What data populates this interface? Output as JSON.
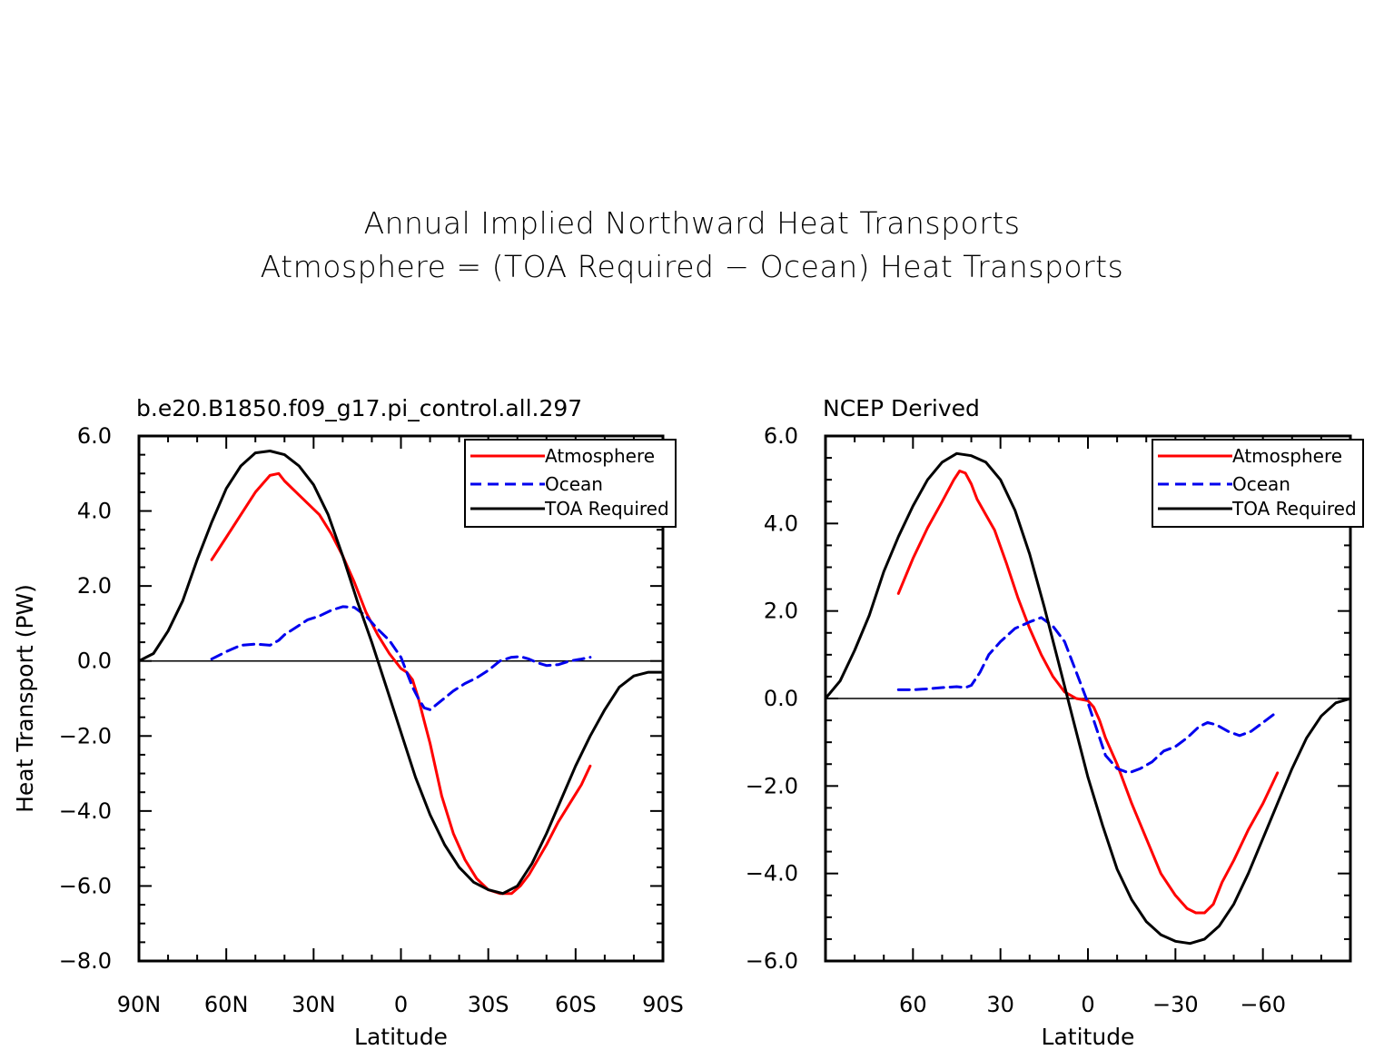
{
  "title": {
    "line1": "Annual Implied Northward Heat Transports",
    "line2": "Atmosphere = (TOA Required − Ocean) Heat Transports"
  },
  "colors": {
    "atmosphere": "#ff0000",
    "ocean": "#0000ee",
    "toa": "#000000"
  },
  "chart_data": [
    {
      "type": "line",
      "title": "b.e20.B1850.f09_g17.pi_control.all.297",
      "xlabel": "Latitude",
      "ylabel": "Heat Transport (PW)",
      "xlim": [
        90,
        -90
      ],
      "ylim": [
        -8,
        6
      ],
      "x_ticks": [
        90,
        60,
        30,
        0,
        -30,
        -60,
        -90
      ],
      "x_tick_labels": [
        "90N",
        "60N",
        "30N",
        "0",
        "30S",
        "60S",
        "90S"
      ],
      "y_ticks": [
        6,
        4,
        2,
        0,
        -2,
        -4,
        -6,
        -8
      ],
      "y_tick_labels": [
        "6.0",
        "4.0",
        "2.0",
        "0.0",
        "−2.0",
        "−4.0",
        "−6.0",
        "−8.0"
      ],
      "legend": "top-right",
      "series": [
        {
          "name": "Atmosphere",
          "style": "solid",
          "color": "#ff0000",
          "x": [
            65,
            60,
            55,
            50,
            45,
            42,
            40,
            36,
            32,
            28,
            24,
            20,
            16,
            12,
            8,
            4,
            0,
            -2,
            -4,
            -6,
            -8,
            -10,
            -14,
            -18,
            -22,
            -26,
            -30,
            -34,
            -38,
            -41,
            -44,
            -47,
            -50,
            -54,
            -58,
            -62,
            -65
          ],
          "y": [
            2.7,
            3.3,
            3.9,
            4.5,
            4.95,
            5.0,
            4.8,
            4.5,
            4.2,
            3.9,
            3.4,
            2.8,
            2.1,
            1.3,
            0.7,
            0.2,
            -0.2,
            -0.3,
            -0.5,
            -1.0,
            -1.6,
            -2.2,
            -3.6,
            -4.6,
            -5.3,
            -5.8,
            -6.1,
            -6.2,
            -6.2,
            -6.0,
            -5.7,
            -5.3,
            -4.9,
            -4.3,
            -3.8,
            -3.3,
            -2.8
          ]
        },
        {
          "name": "Ocean",
          "style": "dashed",
          "color": "#0000ee",
          "x": [
            65,
            60,
            55,
            50,
            45,
            42,
            40,
            36,
            32,
            28,
            24,
            20,
            16,
            12,
            8,
            4,
            0,
            -2,
            -4,
            -6,
            -8,
            -10,
            -14,
            -18,
            -22,
            -26,
            -30,
            -34,
            -38,
            -41,
            -44,
            -47,
            -50,
            -54,
            -58,
            -62,
            -65
          ],
          "y": [
            0.05,
            0.25,
            0.42,
            0.45,
            0.42,
            0.55,
            0.7,
            0.9,
            1.1,
            1.2,
            1.35,
            1.45,
            1.43,
            1.2,
            0.85,
            0.55,
            0.1,
            -0.3,
            -0.7,
            -1.0,
            -1.25,
            -1.3,
            -1.05,
            -0.8,
            -0.6,
            -0.45,
            -0.25,
            0.0,
            0.1,
            0.12,
            0.05,
            -0.05,
            -0.12,
            -0.1,
            0.0,
            0.05,
            0.1
          ]
        },
        {
          "name": "TOA Required",
          "style": "solid",
          "color": "#000000",
          "x": [
            90,
            85,
            80,
            75,
            70,
            65,
            60,
            55,
            50,
            45,
            40,
            35,
            30,
            25,
            20,
            15,
            10,
            5,
            0,
            -5,
            -10,
            -15,
            -20,
            -25,
            -30,
            -35,
            -40,
            -45,
            -50,
            -55,
            -60,
            -65,
            -70,
            -75,
            -80,
            -85,
            -90
          ],
          "y": [
            0.0,
            0.2,
            0.8,
            1.6,
            2.7,
            3.7,
            4.6,
            5.2,
            5.55,
            5.6,
            5.5,
            5.2,
            4.7,
            3.9,
            2.8,
            1.6,
            0.5,
            -0.7,
            -1.9,
            -3.1,
            -4.1,
            -4.9,
            -5.5,
            -5.9,
            -6.1,
            -6.2,
            -6.0,
            -5.4,
            -4.6,
            -3.7,
            -2.8,
            -2.0,
            -1.3,
            -0.7,
            -0.4,
            -0.3,
            -0.3
          ]
        }
      ]
    },
    {
      "type": "line",
      "title": "NCEP Derived",
      "xlabel": "Latitude",
      "ylabel": "",
      "xlim": [
        90,
        -90
      ],
      "ylim": [
        -6,
        6
      ],
      "x_ticks": [
        60,
        30,
        0,
        -30,
        -60
      ],
      "x_tick_labels": [
        "60",
        "30",
        "0",
        "−30",
        "−60"
      ],
      "y_ticks": [
        6,
        4,
        2,
        0,
        -2,
        -4,
        -6
      ],
      "y_tick_labels": [
        "6.0",
        "4.0",
        "2.0",
        "0.0",
        "−2.0",
        "−4.0",
        "−6.0"
      ],
      "legend": "top-right",
      "series": [
        {
          "name": "Atmosphere",
          "style": "solid",
          "color": "#ff0000",
          "x": [
            65,
            60,
            55,
            50,
            46,
            44,
            42,
            40,
            38,
            35,
            32,
            28,
            24,
            20,
            16,
            12,
            8,
            4,
            0,
            -2,
            -4,
            -6,
            -10,
            -15,
            -20,
            -25,
            -30,
            -34,
            -37,
            -40,
            -43,
            -46,
            -50,
            -55,
            -60,
            -65
          ],
          "y": [
            2.4,
            3.2,
            3.9,
            4.5,
            5.0,
            5.2,
            5.15,
            4.9,
            4.55,
            4.2,
            3.85,
            3.1,
            2.3,
            1.6,
            1.0,
            0.5,
            0.15,
            0.0,
            -0.05,
            -0.2,
            -0.5,
            -0.9,
            -1.5,
            -2.4,
            -3.2,
            -4.0,
            -4.5,
            -4.8,
            -4.9,
            -4.9,
            -4.7,
            -4.2,
            -3.7,
            -3.0,
            -2.4,
            -1.7
          ]
        },
        {
          "name": "Ocean",
          "style": "dashed",
          "color": "#0000ee",
          "x": [
            65,
            60,
            55,
            50,
            45,
            42,
            40,
            37,
            34,
            30,
            25,
            20,
            16,
            12,
            8,
            4,
            0,
            -3,
            -6,
            -10,
            -14,
            -18,
            -22,
            -26,
            -30,
            -34,
            -38,
            -41,
            -44,
            -48,
            -52,
            -56,
            -60,
            -65
          ],
          "y": [
            0.2,
            0.2,
            0.22,
            0.25,
            0.27,
            0.25,
            0.3,
            0.6,
            1.0,
            1.3,
            1.6,
            1.75,
            1.85,
            1.65,
            1.3,
            0.6,
            -0.1,
            -0.7,
            -1.3,
            -1.6,
            -1.7,
            -1.6,
            -1.45,
            -1.2,
            -1.1,
            -0.9,
            -0.65,
            -0.55,
            -0.6,
            -0.75,
            -0.85,
            -0.75,
            -0.55,
            -0.3
          ]
        },
        {
          "name": "TOA Required",
          "style": "solid",
          "color": "#000000",
          "x": [
            90,
            85,
            80,
            75,
            70,
            65,
            60,
            55,
            50,
            45,
            40,
            35,
            30,
            25,
            20,
            15,
            10,
            5,
            0,
            -5,
            -10,
            -15,
            -20,
            -25,
            -30,
            -35,
            -40,
            -45,
            -50,
            -55,
            -60,
            -65,
            -70,
            -75,
            -80,
            -85,
            -90
          ],
          "y": [
            0.0,
            0.4,
            1.1,
            1.9,
            2.9,
            3.7,
            4.4,
            5.0,
            5.4,
            5.6,
            5.55,
            5.4,
            5.0,
            4.3,
            3.3,
            2.1,
            0.8,
            -0.5,
            -1.8,
            -2.9,
            -3.9,
            -4.6,
            -5.1,
            -5.4,
            -5.55,
            -5.6,
            -5.5,
            -5.2,
            -4.7,
            -4.0,
            -3.2,
            -2.4,
            -1.6,
            -0.9,
            -0.4,
            -0.1,
            0.0
          ]
        }
      ]
    }
  ]
}
